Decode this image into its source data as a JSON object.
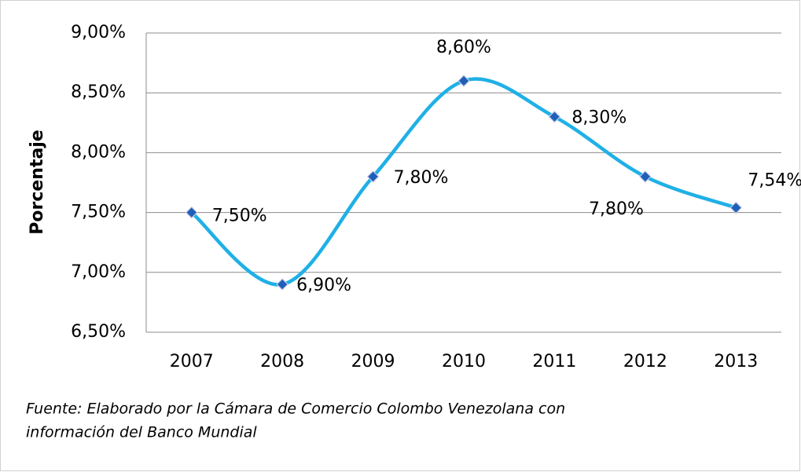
{
  "chart_data": {
    "type": "line",
    "y_label": "Porcentaje",
    "categories": [
      "2007",
      "2008",
      "2009",
      "2010",
      "2011",
      "2012",
      "2013"
    ],
    "series": [
      {
        "name": "Porcentaje",
        "color": "#1fb0e6",
        "marker_color": "#1f5fb8",
        "values": [
          7.5,
          6.9,
          7.8,
          8.6,
          8.3,
          7.8,
          7.54
        ],
        "value_labels": [
          "7,50%",
          "6,90%",
          "7,80%",
          "8,60%",
          "8,30%",
          "7,80%",
          "7,54%"
        ]
      }
    ],
    "ylim": [
      6.5,
      9.0
    ],
    "yticks": [
      {
        "value": 6.5,
        "label": "6,50%"
      },
      {
        "value": 7.0,
        "label": "7,00%"
      },
      {
        "value": 7.5,
        "label": "7,50%"
      },
      {
        "value": 8.0,
        "label": "8,00%"
      },
      {
        "value": 8.5,
        "label": "8,50%"
      },
      {
        "value": 9.0,
        "label": "9,00%"
      }
    ],
    "grid": true,
    "smooth": true,
    "note": [
      "Fuente: Elaborado por la Cámara de Comercio Colombo Venezolana con",
      "información del Banco Mundial"
    ]
  }
}
